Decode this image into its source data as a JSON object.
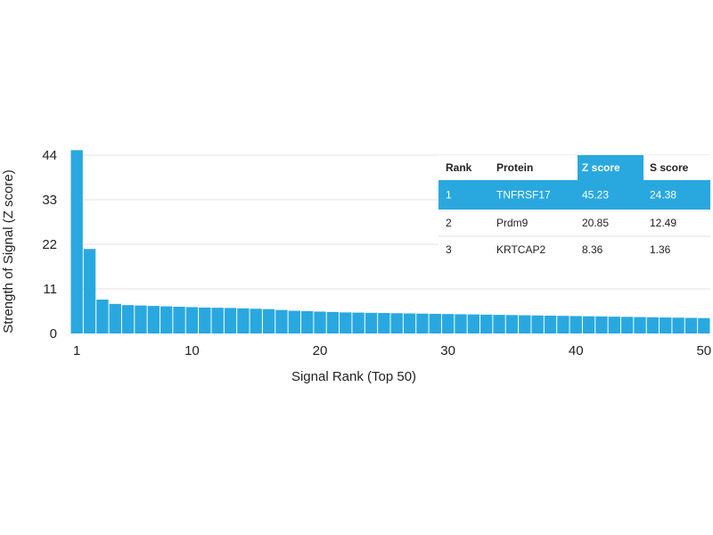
{
  "chart_data": {
    "type": "bar",
    "xlabel": "Signal Rank (Top 50)",
    "ylabel": "Strength of Signal (Z score)",
    "ylim": [
      0,
      44
    ],
    "yticks": [
      "0",
      "11",
      "22",
      "33",
      "44"
    ],
    "xticks": [
      "1",
      "10",
      "20",
      "30",
      "40",
      "50"
    ],
    "x": [
      1,
      2,
      3,
      4,
      5,
      6,
      7,
      8,
      9,
      10,
      11,
      12,
      13,
      14,
      15,
      16,
      17,
      18,
      19,
      20,
      21,
      22,
      23,
      24,
      25,
      26,
      27,
      28,
      29,
      30,
      31,
      32,
      33,
      34,
      35,
      36,
      37,
      38,
      39,
      40,
      41,
      42,
      43,
      44,
      45,
      46,
      47,
      48,
      49,
      50
    ],
    "values": [
      45.23,
      20.85,
      8.36,
      7.3,
      7.0,
      6.9,
      6.8,
      6.7,
      6.6,
      6.5,
      6.4,
      6.35,
      6.3,
      6.2,
      6.1,
      6.0,
      5.8,
      5.6,
      5.5,
      5.4,
      5.3,
      5.2,
      5.15,
      5.1,
      5.05,
      5.0,
      4.95,
      4.9,
      4.85,
      4.8,
      4.75,
      4.7,
      4.65,
      4.6,
      4.55,
      4.5,
      4.45,
      4.4,
      4.35,
      4.3,
      4.25,
      4.2,
      4.15,
      4.1,
      4.05,
      4.0,
      3.95,
      3.9,
      3.85,
      3.8
    ],
    "grid": true,
    "bar_color": "#29a8e0",
    "table": {
      "headers": [
        "Rank",
        "Protein",
        "Z score",
        "S score"
      ],
      "rows": [
        [
          "1",
          "TNFRSF17",
          "45.23",
          "24.38"
        ],
        [
          "2",
          "Prdm9",
          "20.85",
          "12.49"
        ],
        [
          "3",
          "KRTCAP2",
          "8.36",
          "1.36"
        ]
      ],
      "highlight_color": "#29a8e0"
    }
  }
}
